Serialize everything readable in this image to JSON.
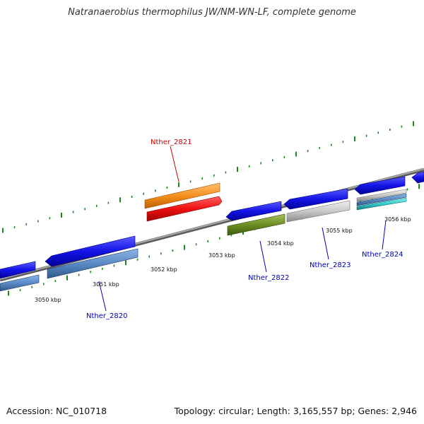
{
  "title": "Natranaerobius thermophilus JW/NM-WN-LF, complete genome",
  "footer": {
    "accession_label": "Accession:",
    "accession": "NC_010718",
    "topology_label": "Topology:",
    "topology": "circular",
    "length_label": "Length:",
    "length": "3,165,557 bp",
    "genes_label": "Genes:",
    "genes": "2,946"
  },
  "scale": {
    "unit": "kbp",
    "ticks": [
      {
        "value": 3050,
        "label": "3050 kbp"
      },
      {
        "value": 3051,
        "label": "3051 kbp"
      },
      {
        "value": 3052,
        "label": "3052 kbp"
      },
      {
        "value": 3053,
        "label": "3053 kbp"
      },
      {
        "value": 3054,
        "label": "3054 kbp"
      },
      {
        "value": 3055,
        "label": "3055 kbp"
      },
      {
        "value": 3056,
        "label": "3056 kbp"
      }
    ]
  },
  "labeled_genes": [
    {
      "name": "Nther_2820",
      "color": "#0000aa"
    },
    {
      "name": "Nther_2821",
      "color": "#cc0000"
    },
    {
      "name": "Nther_2822",
      "color": "#0000aa"
    },
    {
      "name": "Nther_2823",
      "color": "#0000aa"
    },
    {
      "name": "Nther_2824",
      "color": "#0000aa"
    }
  ],
  "colors": {
    "backbone": "#8a8a8a",
    "tick_marks": "#1a8a1a",
    "gene_blue": "#1414e6",
    "gene_steelblue": "#5a8ac6",
    "gene_red": "#ee1111",
    "gene_orange": "#f5901e",
    "gene_olive": "#6b8e23",
    "gene_silver": "#c8c8c8",
    "gene_cyan": "#33cccc"
  }
}
